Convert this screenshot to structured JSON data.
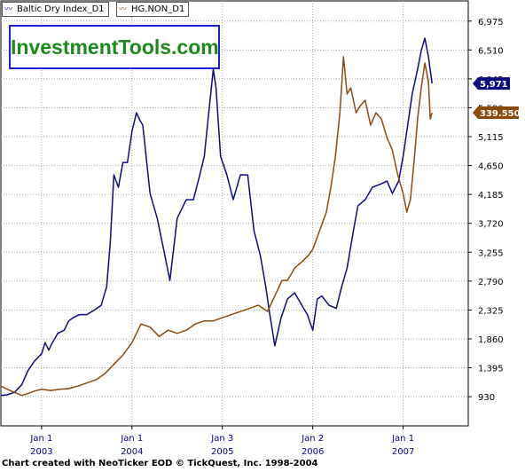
{
  "legend": [
    {
      "label": "Baltic Dry Index_D1",
      "color": "#0a0a80"
    },
    {
      "label": "HG.NON_D1",
      "color": "#8b4a0c"
    }
  ],
  "logo": {
    "text": "InvestmentTools.com"
  },
  "footer": {
    "text": "Chart created with NeoTicker EOD © TickQuest, Inc. 1998-2004"
  },
  "chart_data": {
    "type": "line",
    "grid": true,
    "y_axis": {
      "side": "right",
      "ticks": [
        930,
        1395,
        1860,
        2325,
        2790,
        3255,
        3720,
        4185,
        4650,
        5115,
        5580,
        6045,
        6510,
        6975
      ],
      "tick_labels": [
        "930",
        "1,395",
        "1,860",
        "2,325",
        "2,790",
        "3,255",
        "3,720",
        "4,185",
        "4,650",
        "5,115",
        "5,580",
        "6,045",
        "6,510",
        "6,975"
      ],
      "ylim": [
        460,
        7300
      ]
    },
    "x_axis": {
      "ticks": [
        {
          "x": 2003.0,
          "line1": "Jan 1",
          "line2": "2003"
        },
        {
          "x": 2004.0,
          "line1": "Jan 1",
          "line2": "2004"
        },
        {
          "x": 2005.0,
          "line1": "Jan 3",
          "line2": "2005"
        },
        {
          "x": 2006.0,
          "line1": "Jan 2",
          "line2": "2006"
        },
        {
          "x": 2007.0,
          "line1": "Jan 1",
          "line2": "2007"
        }
      ],
      "xlim": [
        2002.55,
        2007.72
      ]
    },
    "series": [
      {
        "name": "Baltic Dry Index_D1",
        "color": "#0a0a80",
        "last_value_label": "5,971",
        "points": [
          [
            2002.55,
            950
          ],
          [
            2002.62,
            960
          ],
          [
            2002.7,
            1000
          ],
          [
            2002.78,
            1120
          ],
          [
            2002.85,
            1350
          ],
          [
            2002.92,
            1500
          ],
          [
            2003.0,
            1620
          ],
          [
            2003.04,
            1800
          ],
          [
            2003.08,
            1680
          ],
          [
            2003.12,
            1800
          ],
          [
            2003.18,
            1950
          ],
          [
            2003.25,
            2000
          ],
          [
            2003.3,
            2150
          ],
          [
            2003.35,
            2200
          ],
          [
            2003.42,
            2250
          ],
          [
            2003.5,
            2250
          ],
          [
            2003.58,
            2320
          ],
          [
            2003.66,
            2400
          ],
          [
            2003.72,
            2700
          ],
          [
            2003.76,
            3400
          ],
          [
            2003.8,
            4500
          ],
          [
            2003.85,
            4300
          ],
          [
            2003.9,
            4700
          ],
          [
            2003.95,
            4700
          ],
          [
            2004.0,
            5200
          ],
          [
            2004.05,
            5500
          ],
          [
            2004.08,
            5400
          ],
          [
            2004.12,
            5300
          ],
          [
            2004.2,
            4200
          ],
          [
            2004.28,
            3800
          ],
          [
            2004.35,
            3300
          ],
          [
            2004.42,
            2800
          ],
          [
            2004.5,
            3800
          ],
          [
            2004.6,
            4100
          ],
          [
            2004.68,
            4100
          ],
          [
            2004.75,
            4500
          ],
          [
            2004.8,
            4800
          ],
          [
            2004.85,
            5500
          ],
          [
            2004.9,
            6200
          ],
          [
            2004.93,
            5900
          ],
          [
            2004.98,
            4800
          ],
          [
            2005.05,
            4500
          ],
          [
            2005.12,
            4100
          ],
          [
            2005.2,
            4500
          ],
          [
            2005.28,
            4500
          ],
          [
            2005.35,
            3600
          ],
          [
            2005.42,
            3200
          ],
          [
            2005.48,
            2700
          ],
          [
            2005.52,
            2300
          ],
          [
            2005.58,
            1750
          ],
          [
            2005.65,
            2200
          ],
          [
            2005.72,
            2500
          ],
          [
            2005.8,
            2600
          ],
          [
            2005.88,
            2400
          ],
          [
            2005.94,
            2250
          ],
          [
            2006.0,
            2000
          ],
          [
            2006.05,
            2500
          ],
          [
            2006.1,
            2550
          ],
          [
            2006.18,
            2400
          ],
          [
            2006.26,
            2350
          ],
          [
            2006.32,
            2700
          ],
          [
            2006.38,
            3000
          ],
          [
            2006.45,
            3600
          ],
          [
            2006.5,
            4000
          ],
          [
            2006.58,
            4100
          ],
          [
            2006.66,
            4300
          ],
          [
            2006.75,
            4350
          ],
          [
            2006.82,
            4400
          ],
          [
            2006.88,
            4200
          ],
          [
            2006.95,
            4400
          ],
          [
            2007.0,
            4800
          ],
          [
            2007.05,
            5300
          ],
          [
            2007.1,
            5800
          ],
          [
            2007.16,
            6200
          ],
          [
            2007.2,
            6500
          ],
          [
            2007.24,
            6700
          ],
          [
            2007.28,
            6400
          ],
          [
            2007.32,
            5971
          ]
        ]
      },
      {
        "name": "HG.NON_D1",
        "color": "#8b4a0c",
        "last_value_label": "339.550",
        "points": [
          [
            2002.55,
            1100
          ],
          [
            2002.62,
            1050
          ],
          [
            2002.7,
            1000
          ],
          [
            2002.78,
            950
          ],
          [
            2002.85,
            980
          ],
          [
            2002.92,
            1020
          ],
          [
            2003.0,
            1050
          ],
          [
            2003.1,
            1030
          ],
          [
            2003.2,
            1050
          ],
          [
            2003.3,
            1060
          ],
          [
            2003.4,
            1100
          ],
          [
            2003.5,
            1150
          ],
          [
            2003.6,
            1200
          ],
          [
            2003.7,
            1300
          ],
          [
            2003.8,
            1450
          ],
          [
            2003.9,
            1600
          ],
          [
            2004.0,
            1800
          ],
          [
            2004.1,
            2100
          ],
          [
            2004.2,
            2050
          ],
          [
            2004.3,
            1900
          ],
          [
            2004.4,
            2000
          ],
          [
            2004.5,
            1950
          ],
          [
            2004.6,
            2000
          ],
          [
            2004.7,
            2100
          ],
          [
            2004.8,
            2150
          ],
          [
            2004.9,
            2150
          ],
          [
            2005.0,
            2200
          ],
          [
            2005.1,
            2250
          ],
          [
            2005.2,
            2300
          ],
          [
            2005.3,
            2350
          ],
          [
            2005.4,
            2400
          ],
          [
            2005.5,
            2300
          ],
          [
            2005.58,
            2550
          ],
          [
            2005.66,
            2800
          ],
          [
            2005.72,
            2800
          ],
          [
            2005.8,
            3000
          ],
          [
            2005.88,
            3100
          ],
          [
            2005.95,
            3200
          ],
          [
            2006.0,
            3300
          ],
          [
            2006.05,
            3500
          ],
          [
            2006.1,
            3700
          ],
          [
            2006.15,
            3900
          ],
          [
            2006.2,
            4300
          ],
          [
            2006.25,
            4800
          ],
          [
            2006.3,
            5500
          ],
          [
            2006.34,
            6400
          ],
          [
            2006.38,
            5800
          ],
          [
            2006.42,
            5900
          ],
          [
            2006.48,
            5500
          ],
          [
            2006.52,
            5600
          ],
          [
            2006.58,
            5700
          ],
          [
            2006.64,
            5300
          ],
          [
            2006.7,
            5500
          ],
          [
            2006.76,
            5400
          ],
          [
            2006.82,
            5100
          ],
          [
            2006.88,
            4900
          ],
          [
            2006.94,
            4500
          ],
          [
            2007.0,
            4200
          ],
          [
            2007.04,
            3900
          ],
          [
            2007.08,
            4100
          ],
          [
            2007.12,
            4700
          ],
          [
            2007.16,
            5400
          ],
          [
            2007.2,
            5900
          ],
          [
            2007.24,
            6300
          ],
          [
            2007.28,
            6000
          ],
          [
            2007.3,
            5400
          ],
          [
            2007.32,
            5500
          ]
        ]
      }
    ]
  }
}
